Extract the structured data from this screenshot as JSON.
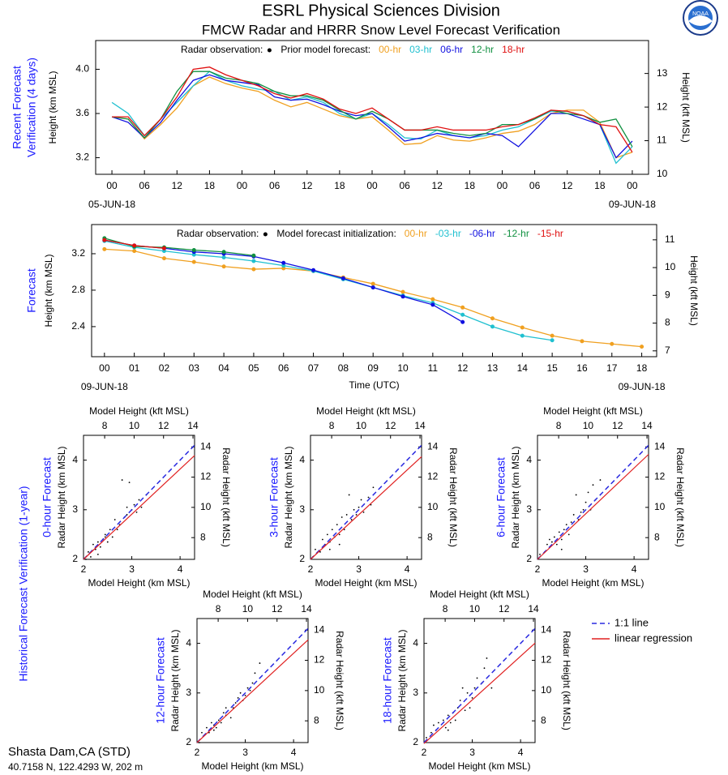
{
  "header": {
    "title": "ESRL Physical Sciences Division",
    "subtitle": "FMCW Radar and HRRR Snow Level Forecast Verification",
    "logo_text": "NOAA"
  },
  "section_label": "Historical Forecast Verification (1-year)",
  "site": {
    "name": "Shasta Dam,CA (STD)",
    "location": "40.7158 N, 122.4293 W, 202 m"
  },
  "scatter_legend": {
    "entries": [
      {
        "name": "1:1 line",
        "color": "#2a2ae0",
        "dash": true
      },
      {
        "name": "linear regression",
        "color": "#e02020",
        "dash": false
      }
    ]
  },
  "chart_data": [
    {
      "type": "line",
      "side_label": [
        "Recent Forecast",
        "Verification (4 days)"
      ],
      "ylabel": "Height (km MSL)",
      "y2label": "Height (kft MSL)",
      "legend": {
        "obs_label": "Radar observation:",
        "model_label": "Prior model forecast:"
      },
      "date_labels": [
        "05-JUN-18",
        "09-JUN-18"
      ],
      "markers": false,
      "x": [
        0,
        3,
        6,
        9,
        12,
        15,
        18,
        21,
        24,
        27,
        30,
        33,
        36,
        39,
        42,
        45,
        48,
        51,
        54,
        57,
        60,
        63,
        66,
        69,
        72,
        75,
        78,
        81,
        84,
        87,
        90,
        93,
        96
      ],
      "xlim": [
        -3,
        99
      ],
      "xticks": [
        {
          "value": 0,
          "label": "00"
        },
        {
          "value": 6,
          "label": "06"
        },
        {
          "value": 12,
          "label": "12"
        },
        {
          "value": 18,
          "label": "18"
        },
        {
          "value": 24,
          "label": "00"
        },
        {
          "value": 30,
          "label": "06"
        },
        {
          "value": 36,
          "label": "12"
        },
        {
          "value": 42,
          "label": "18"
        },
        {
          "value": 48,
          "label": "00"
        },
        {
          "value": 54,
          "label": "06"
        },
        {
          "value": 60,
          "label": "12"
        },
        {
          "value": 66,
          "label": "18"
        },
        {
          "value": 72,
          "label": "00"
        },
        {
          "value": 78,
          "label": "06"
        },
        {
          "value": 84,
          "label": "12"
        },
        {
          "value": 90,
          "label": "18"
        },
        {
          "value": 96,
          "label": "00"
        }
      ],
      "ylim": [
        3.05,
        4.26
      ],
      "yticks": [
        3.2,
        3.6,
        {
          "value": 4,
          "label": "4.0"
        }
      ],
      "y2lim": [
        10.0,
        13.98
      ],
      "y2ticks": [
        10,
        11,
        12,
        13
      ],
      "series": [
        {
          "name": "00-hr",
          "color": "#f0a020",
          "values": [
            3.57,
            3.55,
            3.37,
            3.5,
            3.65,
            3.85,
            3.93,
            3.87,
            3.83,
            3.8,
            3.72,
            3.66,
            3.7,
            3.64,
            3.58,
            3.55,
            3.57,
            3.45,
            3.32,
            3.33,
            3.4,
            3.36,
            3.35,
            3.38,
            3.42,
            3.44,
            3.5,
            3.6,
            3.63,
            3.63,
            3.52,
            3.2,
            3.25
          ]
        },
        {
          "name": "03-hr",
          "color": "#20c0d0",
          "values": [
            3.7,
            3.6,
            3.4,
            3.55,
            3.7,
            3.85,
            3.98,
            3.9,
            3.85,
            3.82,
            3.8,
            3.72,
            3.75,
            3.7,
            3.6,
            3.55,
            3.6,
            3.5,
            3.38,
            3.37,
            3.45,
            3.4,
            3.38,
            3.4,
            3.45,
            3.48,
            3.55,
            3.62,
            3.62,
            3.58,
            3.5,
            3.15,
            3.3
          ]
        },
        {
          "name": "06-hr",
          "color": "#1010e0",
          "values": [
            3.57,
            3.52,
            3.38,
            3.52,
            3.72,
            3.9,
            3.95,
            3.9,
            3.88,
            3.86,
            3.75,
            3.72,
            3.73,
            3.68,
            3.62,
            3.58,
            3.6,
            3.48,
            3.35,
            3.38,
            3.42,
            3.4,
            3.38,
            3.42,
            3.4,
            3.3,
            3.45,
            3.6,
            3.6,
            3.55,
            3.5,
            3.2,
            3.35
          ]
        },
        {
          "name": "12-hr",
          "color": "#109040",
          "values": [
            3.57,
            3.55,
            3.38,
            3.55,
            3.8,
            3.98,
            3.98,
            3.92,
            3.9,
            3.87,
            3.8,
            3.76,
            3.76,
            3.72,
            3.63,
            3.55,
            3.62,
            3.55,
            3.45,
            3.45,
            3.45,
            3.42,
            3.4,
            3.42,
            3.5,
            3.5,
            3.55,
            3.63,
            3.6,
            3.58,
            3.52,
            3.55,
            3.3
          ]
        },
        {
          "name": "18-hr",
          "color": "#e01010",
          "values": [
            3.57,
            3.57,
            3.4,
            3.55,
            3.75,
            4.0,
            4.02,
            3.95,
            3.9,
            3.85,
            3.78,
            3.74,
            3.78,
            3.73,
            3.64,
            3.6,
            3.65,
            3.55,
            3.45,
            3.45,
            3.48,
            3.45,
            3.45,
            3.45,
            3.48,
            3.5,
            3.56,
            3.63,
            3.62,
            3.58,
            3.5,
            3.48,
            3.25
          ]
        }
      ]
    },
    {
      "type": "line",
      "side_label": [
        "Forecast"
      ],
      "ylabel": "Height (km MSL)",
      "y2label": "Height (kft MSL)",
      "xlabel": "Time (UTC)",
      "legend": {
        "obs_label": "Radar observation:",
        "model_label": "Model forecast initialization:"
      },
      "date_labels": [
        "09-JUN-18",
        "09-JUN-18"
      ],
      "markers": true,
      "x": [
        0,
        1,
        2,
        3,
        4,
        5,
        6,
        7,
        8,
        9,
        10,
        11,
        12,
        13,
        14,
        15,
        16,
        17,
        18
      ],
      "xlim": [
        -0.43,
        18.5
      ],
      "xticks": [
        {
          "value": 0,
          "label": "00"
        },
        {
          "value": 1,
          "label": "01"
        },
        {
          "value": 2,
          "label": "02"
        },
        {
          "value": 3,
          "label": "03"
        },
        {
          "value": 4,
          "label": "04"
        },
        {
          "value": 5,
          "label": "05"
        },
        {
          "value": 6,
          "label": "06"
        },
        {
          "value": 7,
          "label": "07"
        },
        {
          "value": 8,
          "label": "08"
        },
        {
          "value": 9,
          "label": "09"
        },
        10,
        11,
        12,
        13,
        14,
        15,
        16,
        17,
        18
      ],
      "ylim": [
        2.07,
        3.52
      ],
      "yticks": [
        2.4,
        2.8,
        3.2
      ],
      "y2lim": [
        6.79,
        11.55
      ],
      "y2ticks": [
        7,
        8,
        9,
        10,
        11
      ],
      "series": [
        {
          "name": "00-hr",
          "color": "#f0a020",
          "values": [
            3.25,
            3.23,
            3.15,
            3.11,
            3.06,
            3.03,
            3.04,
            3.01,
            2.94,
            2.87,
            2.78,
            2.7,
            2.61,
            2.49,
            2.39,
            2.3,
            2.24,
            2.21,
            2.18
          ]
        },
        {
          "name": "-03-hr",
          "color": "#20c0d0",
          "values": [
            3.34,
            3.27,
            3.23,
            3.19,
            3.16,
            3.12,
            3.07,
            3.01,
            2.92,
            2.83,
            2.74,
            2.66,
            2.53,
            2.4,
            2.3,
            2.25,
            null,
            null,
            null
          ]
        },
        {
          "name": "-06-hr",
          "color": "#1010e0",
          "values": [
            3.35,
            3.29,
            3.26,
            3.22,
            3.2,
            3.17,
            3.1,
            3.02,
            2.93,
            2.83,
            2.73,
            2.64,
            2.45,
            null,
            null,
            null,
            null,
            null,
            null
          ]
        },
        {
          "name": "-12-hr",
          "color": "#109040",
          "values": [
            3.37,
            3.28,
            3.27,
            3.24,
            3.22,
            3.18,
            null,
            null,
            null,
            null,
            null,
            null,
            null,
            null,
            null,
            null,
            null,
            null,
            null
          ]
        },
        {
          "name": "-15-hr",
          "color": "#e01010",
          "values": [
            3.35,
            3.29,
            3.26,
            null,
            null,
            null,
            null,
            null,
            null,
            null,
            null,
            null,
            null,
            null,
            null,
            null,
            null,
            null,
            null
          ]
        }
      ]
    },
    {
      "type": "scatter",
      "title": "0-hour Forecast",
      "xlabel": "Model Height (km MSL)",
      "ylabel": "Radar Height (km MSL)",
      "x2label": "Model Height (kft MSL)",
      "y2label": "Radar Height (kft MSL)",
      "xlim": [
        2,
        4.3
      ],
      "ylim": [
        2,
        4.5
      ],
      "xticks": [
        2,
        3,
        4
      ],
      "yticks": [
        2,
        3,
        4
      ],
      "x2lim": [
        6.562,
        14.108
      ],
      "y2lim": [
        6.562,
        14.764
      ],
      "x2ticks": [
        8,
        10,
        12,
        14
      ],
      "y2ticks": [
        8,
        10,
        12,
        14
      ],
      "point_color": "#000000",
      "regression": {
        "slope": 0.91,
        "intercept": 0.18
      },
      "x": [
        2.05,
        2.1,
        2.15,
        2.2,
        2.25,
        2.3,
        2.35,
        2.4,
        2.45,
        2.5,
        2.55,
        2.6,
        2.65,
        2.7,
        2.8,
        2.85,
        2.9,
        2.95,
        3.0,
        3.05,
        3.1,
        3.2,
        3.3,
        2.9,
        2.75,
        2.3,
        2.45,
        3.15
      ],
      "y": [
        2.0,
        2.15,
        2.05,
        2.3,
        2.2,
        2.35,
        2.25,
        2.4,
        2.5,
        2.35,
        2.6,
        2.45,
        2.8,
        2.6,
        3.6,
        2.85,
        2.9,
        3.55,
        3.0,
        3.1,
        2.95,
        3.05,
        3.3,
        3.05,
        2.7,
        2.1,
        2.45,
        3.2
      ]
    },
    {
      "type": "scatter",
      "title": "3-hour Forecast",
      "xlabel": "Model Height (km MSL)",
      "ylabel": "Radar Height (km MSL)",
      "x2label": "Model Height (kft MSL)",
      "y2label": "Radar Height (kft MSL)",
      "xlim": [
        2,
        4.3
      ],
      "ylim": [
        2,
        4.5
      ],
      "xticks": [
        2,
        3,
        4
      ],
      "yticks": [
        2,
        3,
        4
      ],
      "x2lim": [
        6.562,
        14.108
      ],
      "y2lim": [
        6.562,
        14.764
      ],
      "x2ticks": [
        8,
        10,
        12,
        14
      ],
      "y2ticks": [
        8,
        10,
        12,
        14
      ],
      "point_color": "#000000",
      "regression": {
        "slope": 0.9,
        "intercept": 0.2
      },
      "x": [
        2.05,
        2.1,
        2.2,
        2.25,
        2.3,
        2.35,
        2.4,
        2.45,
        2.5,
        2.55,
        2.6,
        2.65,
        2.7,
        2.75,
        2.8,
        2.85,
        2.9,
        3.0,
        3.05,
        3.1,
        3.2,
        3.25,
        3.3,
        2.4,
        2.6,
        2.95
      ],
      "y": [
        2.05,
        2.2,
        2.15,
        2.4,
        2.3,
        2.5,
        2.35,
        2.6,
        2.45,
        2.7,
        2.5,
        2.85,
        2.6,
        2.9,
        3.3,
        2.8,
        3.0,
        3.05,
        3.2,
        2.95,
        3.25,
        3.1,
        3.45,
        2.2,
        2.3,
        2.9
      ]
    },
    {
      "type": "scatter",
      "title": "6-hour Forecast",
      "xlabel": "Model Height (km MSL)",
      "ylabel": "Radar Height (km MSL)",
      "x2label": "Model Height (kft MSL)",
      "y2label": "Radar Height (kft MSL)",
      "xlim": [
        2,
        4.3
      ],
      "ylim": [
        2,
        4.5
      ],
      "xticks": [
        2,
        3,
        4
      ],
      "yticks": [
        2,
        3,
        4
      ],
      "x2lim": [
        6.562,
        14.108
      ],
      "y2lim": [
        6.562,
        14.764
      ],
      "x2ticks": [
        8,
        10,
        12,
        14
      ],
      "y2ticks": [
        8,
        10,
        12,
        14
      ],
      "point_color": "#000000",
      "regression": {
        "slope": 0.92,
        "intercept": 0.16
      },
      "x": [
        2.05,
        2.15,
        2.2,
        2.3,
        2.35,
        2.4,
        2.45,
        2.5,
        2.55,
        2.6,
        2.65,
        2.7,
        2.75,
        2.8,
        2.9,
        2.95,
        3.0,
        3.05,
        3.1,
        3.15,
        3.2,
        3.3,
        2.5,
        2.85,
        2.25
      ],
      "y": [
        2.1,
        2.15,
        2.3,
        2.35,
        2.45,
        2.3,
        2.55,
        2.4,
        2.6,
        2.7,
        2.5,
        2.75,
        2.9,
        3.3,
        2.95,
        3.0,
        3.15,
        3.35,
        3.0,
        3.5,
        3.2,
        3.6,
        2.2,
        2.8,
        2.4
      ]
    },
    {
      "type": "scatter",
      "title": "12-hour Forecast",
      "xlabel": "Model Height (km MSL)",
      "ylabel": "Radar Height (km MSL)",
      "x2label": "Model Height (kft MSL)",
      "y2label": "Radar Height (kft MSL)",
      "xlim": [
        2,
        4.3
      ],
      "ylim": [
        2,
        4.5
      ],
      "xticks": [
        2,
        3,
        4
      ],
      "yticks": [
        2,
        3,
        4
      ],
      "x2lim": [
        6.562,
        14.108
      ],
      "y2lim": [
        6.562,
        14.764
      ],
      "x2ticks": [
        8,
        10,
        12,
        14
      ],
      "y2ticks": [
        8,
        10,
        12,
        14
      ],
      "point_color": "#000000",
      "regression": {
        "slope": 0.9,
        "intercept": 0.2
      },
      "x": [
        2.05,
        2.1,
        2.2,
        2.25,
        2.3,
        2.35,
        2.4,
        2.45,
        2.5,
        2.55,
        2.6,
        2.7,
        2.75,
        2.8,
        2.85,
        2.9,
        3.0,
        3.05,
        3.1,
        3.2,
        3.3,
        2.6,
        2.35,
        3.15,
        2.95
      ],
      "y": [
        2.0,
        2.2,
        2.3,
        2.2,
        2.4,
        2.35,
        2.3,
        2.45,
        2.4,
        2.6,
        2.55,
        2.5,
        2.7,
        2.8,
        2.9,
        3.0,
        2.95,
        3.1,
        3.05,
        3.4,
        3.6,
        2.7,
        2.25,
        3.2,
        2.85
      ]
    },
    {
      "type": "scatter",
      "title": "18-hour Forecast",
      "xlabel": "Model Height (km MSL)",
      "ylabel": "Radar Height (km MSL)",
      "x2label": "Model Height (kft MSL)",
      "y2label": "Radar Height (kft MSL)",
      "xlim": [
        2,
        4.3
      ],
      "ylim": [
        2,
        4.5
      ],
      "xticks": [
        2,
        3,
        4
      ],
      "yticks": [
        2,
        3,
        4
      ],
      "x2lim": [
        6.562,
        14.108
      ],
      "y2lim": [
        6.562,
        14.764
      ],
      "x2ticks": [
        8,
        10,
        12,
        14
      ],
      "y2ticks": [
        8,
        10,
        12,
        14
      ],
      "point_color": "#000000",
      "regression": {
        "slope": 0.88,
        "intercept": 0.22
      },
      "x": [
        2.05,
        2.15,
        2.2,
        2.25,
        2.3,
        2.4,
        2.45,
        2.5,
        2.55,
        2.6,
        2.7,
        2.75,
        2.8,
        2.85,
        2.9,
        3.0,
        3.05,
        3.1,
        3.2,
        3.25,
        3.3,
        2.5,
        2.65,
        2.95,
        3.4
      ],
      "y": [
        2.1,
        2.2,
        2.35,
        2.25,
        2.4,
        2.45,
        2.3,
        2.55,
        2.4,
        2.6,
        2.7,
        2.85,
        3.1,
        2.65,
        3.0,
        2.9,
        3.1,
        3.3,
        3.2,
        3.5,
        3.7,
        2.25,
        2.45,
        2.7,
        3.1
      ]
    }
  ]
}
